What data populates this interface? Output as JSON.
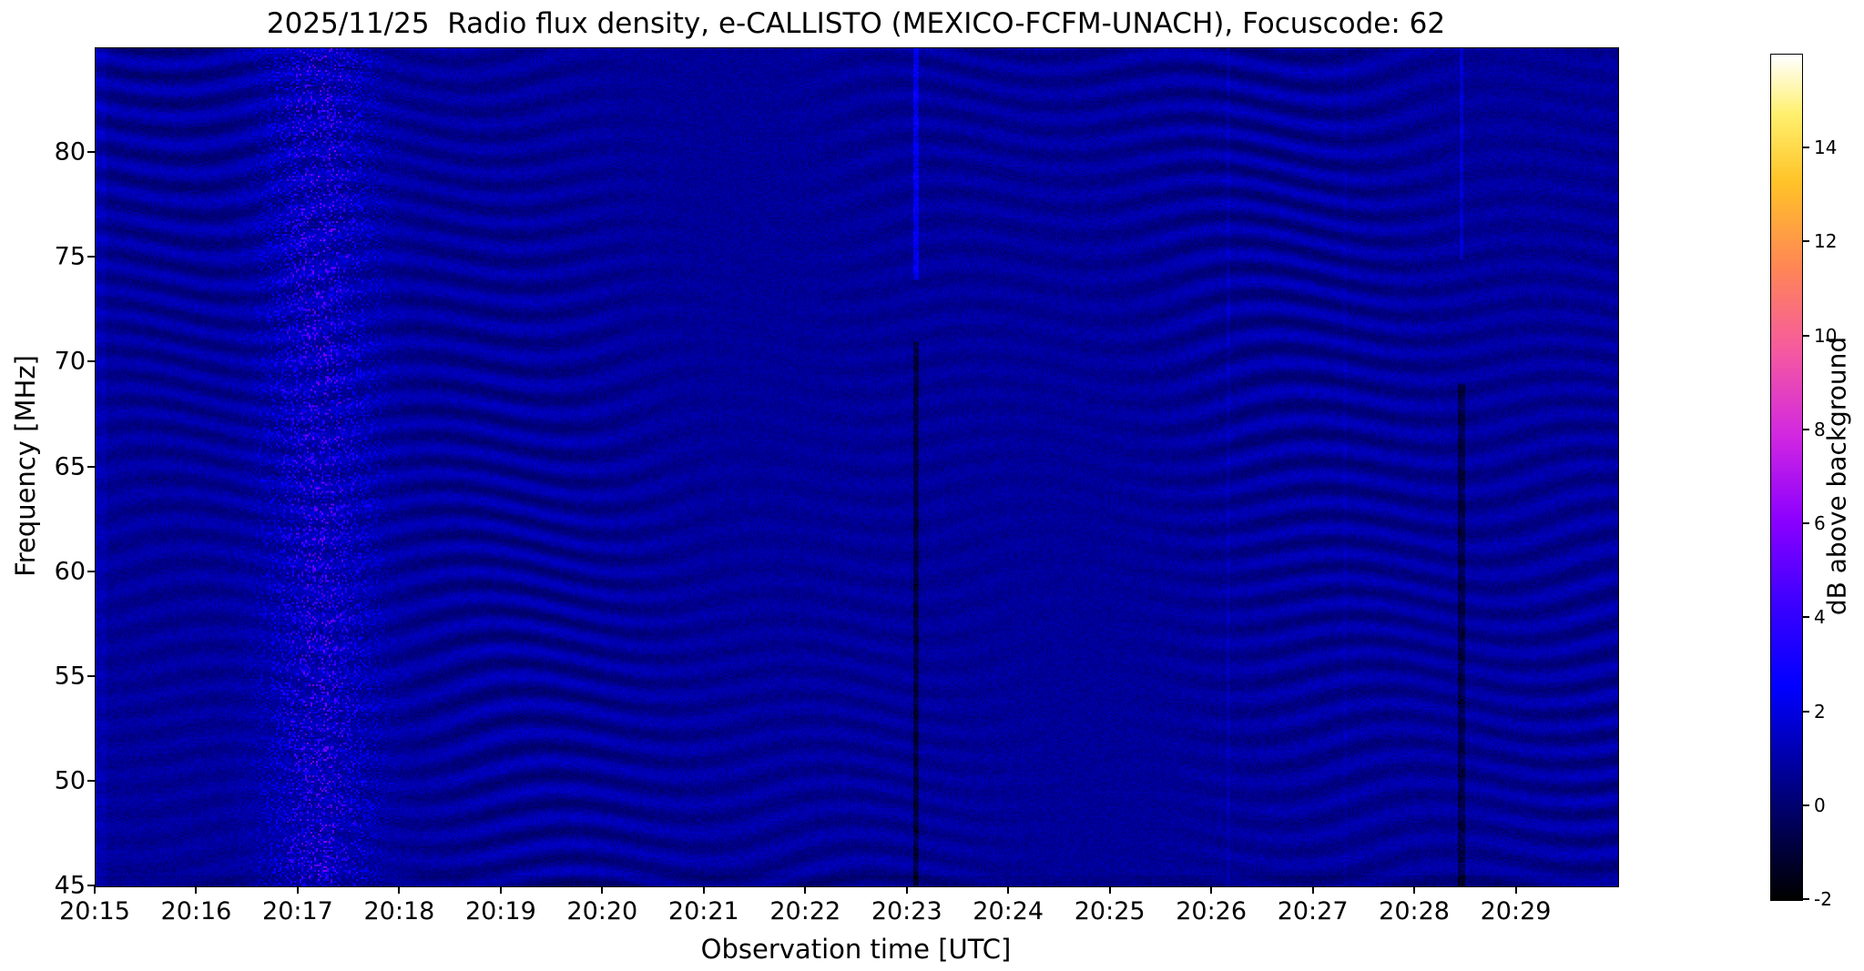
{
  "chart_data": {
    "type": "heatmap",
    "subtype": "radio-spectrogram",
    "title": "2025/11/25  Radio flux density, e-CALLISTO (MEXICO-FCFM-UNACH), Focuscode: 62",
    "xlabel": "Observation time [UTC]",
    "ylabel": "Frequency [MHz]",
    "x_ticks": [
      "20:15",
      "20:16",
      "20:17",
      "20:18",
      "20:19",
      "20:20",
      "20:21",
      "20:22",
      "20:23",
      "20:24",
      "20:25",
      "20:26",
      "20:27",
      "20:28",
      "20:29"
    ],
    "x_range_minutes": [
      0,
      15
    ],
    "y_ticks": [
      "45",
      "50",
      "55",
      "60",
      "65",
      "70",
      "75",
      "80"
    ],
    "y_range": [
      45,
      85
    ],
    "grid": false,
    "legend": "none",
    "colorbar": {
      "label": "dB above background",
      "ticks": [
        "-2",
        "0",
        "2",
        "4",
        "6",
        "8",
        "10",
        "12",
        "14"
      ],
      "range": [
        -2,
        16
      ],
      "colormap": "gnuplot2",
      "stops": [
        [
          0.0,
          0,
          0,
          0
        ],
        [
          0.09,
          0,
          0,
          90
        ],
        [
          0.25,
          0,
          0,
          255
        ],
        [
          0.35,
          60,
          0,
          255
        ],
        [
          0.45,
          140,
          0,
          255
        ],
        [
          0.55,
          210,
          40,
          225
        ],
        [
          0.65,
          245,
          90,
          160
        ],
        [
          0.75,
          255,
          135,
          85
        ],
        [
          0.85,
          255,
          195,
          40
        ],
        [
          0.93,
          255,
          240,
          110
        ],
        [
          1.0,
          255,
          255,
          255
        ]
      ]
    },
    "background_level_db": 0.7,
    "features": [
      {
        "label": "wavy-interference-bands",
        "description": "faint dark horizontal ripple bands (~1.3 MHz spacing) undulating slowly in time across the whole band"
      },
      {
        "label": "broadband-noise-burst",
        "time": "20:16.8-20:18.2",
        "description": "speckled brighter vertical band of enhanced flux across 45-85 MHz"
      },
      {
        "label": "dark-dropout-line",
        "time": "20:23",
        "description": "narrow dark vertical line below ~71 MHz with a short bright streak above ~74 MHz"
      },
      {
        "label": "dark-dropout-line",
        "time": "20:28.5",
        "description": "narrow dark vertical line below ~69 MHz"
      },
      {
        "label": "faint-bright-line",
        "time": "20:26.1",
        "description": "very faint brighter vertical line"
      }
    ],
    "render": {
      "base": 0.7,
      "noise": 0.7,
      "ripple_amp": 0.45,
      "band_freq": 5.0,
      "wiggle1_amp": 2.5,
      "wiggle1_t": 2.2,
      "wiggle1_f": 0.15,
      "wiggle2_amp": 1.3,
      "wiggle2_t": 0.9,
      "wiggle2_f": 0.35,
      "burst": {
        "center": 2.2,
        "width": 0.5,
        "density": 0.3,
        "peak": 5.0
      },
      "vlines": [
        {
          "t": 8.07,
          "w": 0.03,
          "f0": 45,
          "f1": 71,
          "dv": -2.0
        },
        {
          "t": 8.07,
          "w": 0.025,
          "f0": 74,
          "f1": 85,
          "dv": 2.0
        },
        {
          "t": 13.45,
          "w": 0.03,
          "f0": 45,
          "f1": 69,
          "dv": -1.8
        },
        {
          "t": 13.45,
          "w": 0.02,
          "f0": 75,
          "f1": 85,
          "dv": 1.2
        },
        {
          "t": 11.15,
          "w": 0.018,
          "f0": 45,
          "f1": 85,
          "dv": 0.5
        },
        {
          "t": 12.3,
          "w": 0.015,
          "f0": 45,
          "f1": 85,
          "dv": 0.3
        },
        {
          "t": 0.05,
          "w": 0.05,
          "f0": 45,
          "f1": 85,
          "dv": 0.5
        }
      ]
    }
  }
}
